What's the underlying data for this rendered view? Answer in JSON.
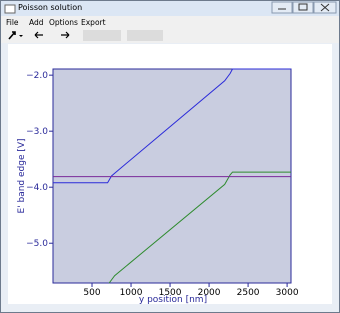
{
  "window": {
    "title": "Poisson solution",
    "menu": [
      "File",
      "Add",
      "Options",
      "Export"
    ]
  },
  "chart_data": {
    "type": "line",
    "xlabel": "y position [nm]",
    "ylabel": "E' band edge [V]",
    "xlim": [
      0,
      3050
    ],
    "ylim": [
      -5.71,
      -1.89
    ],
    "xticks": [
      500,
      1000,
      1500,
      2000,
      2500,
      3000
    ],
    "yticks": [
      {
        "value": -2,
        "label": "−2.0"
      },
      {
        "value": -3,
        "label": "−3.0"
      },
      {
        "value": -4,
        "label": "−4.0"
      },
      {
        "value": -5,
        "label": "−5.0"
      }
    ],
    "series": [
      {
        "color": "#2b2bd9",
        "x": [
          0,
          700,
          750,
          800,
          2200,
          2270,
          2300,
          3050
        ],
        "values": [
          -3.92,
          -3.92,
          -3.8,
          -3.74,
          -2.1,
          -1.97,
          -1.89,
          -1.89
        ]
      },
      {
        "color": "#2e8b2e",
        "x": [
          720,
          790,
          2200,
          2270,
          2300,
          3050
        ],
        "values": [
          -5.71,
          -5.58,
          -3.95,
          -3.78,
          -3.73,
          -3.73
        ]
      },
      {
        "color": "#7a2a9a",
        "x": [
          0,
          3050
        ],
        "values": [
          -3.81,
          -3.81
        ]
      }
    ]
  }
}
